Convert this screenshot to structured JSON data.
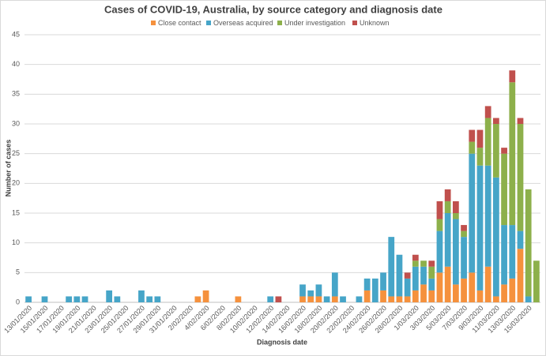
{
  "chart_data": {
    "type": "stacked_bar",
    "title": "Cases of COVID-19, Australia, by source category and diagnosis date",
    "x_label": "Diagnosis date",
    "y_label": "Number of cases",
    "categories": [
      "13/01/2020",
      null,
      "15/01/2020",
      null,
      "17/01/2020",
      null,
      "19/01/2020",
      null,
      "21/01/2020",
      null,
      "23/01/2020",
      null,
      "25/01/2020",
      null,
      "27/01/2020",
      null,
      "29/01/2020",
      null,
      "31/01/2020",
      null,
      "2/02/2020",
      null,
      "4/02/2020",
      null,
      "6/02/2020",
      null,
      "8/02/2020",
      null,
      "10/02/2020",
      null,
      "12/02/2020",
      null,
      "14/02/2020",
      null,
      "16/02/2020",
      null,
      "18/02/2020",
      null,
      "20/02/2020",
      null,
      "22/02/2020",
      null,
      "24/02/2020",
      null,
      "26/02/2020",
      null,
      "28/02/2020",
      null,
      "1/03/2020",
      null,
      "3/03/2020",
      null,
      "5/03/2020",
      null,
      "7/03/2020",
      null,
      "9/03/2020",
      null,
      "11/03/2020",
      null,
      "13/03/2020",
      null,
      "15/03/2020",
      null
    ],
    "series": [
      {
        "name": "Close contact",
        "color": "#f5913d",
        "values": [
          0,
          0,
          0,
          0,
          0,
          0,
          0,
          0,
          0,
          0,
          0,
          0,
          0,
          0,
          0,
          0,
          0,
          0,
          0,
          0,
          0,
          1,
          2,
          0,
          0,
          0,
          1,
          0,
          0,
          0,
          0,
          0,
          0,
          0,
          1,
          1,
          1,
          0,
          1,
          0,
          0,
          0,
          2,
          0,
          2,
          1,
          1,
          1,
          2,
          3,
          2,
          5,
          6,
          3,
          4,
          5,
          2,
          6,
          1,
          3,
          4,
          9,
          0,
          0
        ]
      },
      {
        "name": "Overseas acquired",
        "color": "#46a5c8",
        "values": [
          1,
          0,
          1,
          0,
          0,
          1,
          1,
          1,
          0,
          0,
          2,
          1,
          0,
          0,
          2,
          1,
          1,
          0,
          0,
          0,
          0,
          0,
          0,
          0,
          0,
          0,
          0,
          0,
          0,
          0,
          1,
          0,
          0,
          0,
          2,
          1,
          2,
          1,
          4,
          1,
          0,
          1,
          2,
          4,
          3,
          10,
          7,
          3,
          4,
          3,
          2,
          7,
          9,
          11,
          7,
          20,
          21,
          17,
          20,
          10,
          9,
          3,
          1,
          0
        ]
      },
      {
        "name": "Under investigation",
        "color": "#8db04b",
        "values": [
          0,
          0,
          0,
          0,
          0,
          0,
          0,
          0,
          0,
          0,
          0,
          0,
          0,
          0,
          0,
          0,
          0,
          0,
          0,
          0,
          0,
          0,
          0,
          0,
          0,
          0,
          0,
          0,
          0,
          0,
          0,
          0,
          0,
          0,
          0,
          0,
          0,
          0,
          0,
          0,
          0,
          0,
          0,
          0,
          0,
          0,
          0,
          0,
          1,
          1,
          2,
          2,
          2,
          1,
          1,
          2,
          3,
          8,
          9,
          12,
          24,
          18,
          18,
          7
        ]
      },
      {
        "name": "Unknown",
        "color": "#c0504d",
        "values": [
          0,
          0,
          0,
          0,
          0,
          0,
          0,
          0,
          0,
          0,
          0,
          0,
          0,
          0,
          0,
          0,
          0,
          0,
          0,
          0,
          0,
          0,
          0,
          0,
          0,
          0,
          0,
          0,
          0,
          0,
          0,
          1,
          0,
          0,
          0,
          0,
          0,
          0,
          0,
          0,
          0,
          0,
          0,
          0,
          0,
          0,
          0,
          1,
          1,
          0,
          1,
          3,
          2,
          2,
          1,
          2,
          3,
          2,
          1,
          1,
          2,
          1,
          0,
          0
        ]
      }
    ],
    "ylim": [
      0,
      45
    ],
    "yticks": [
      0,
      5,
      10,
      15,
      20,
      25,
      30,
      35,
      40,
      45
    ],
    "grid": true
  }
}
